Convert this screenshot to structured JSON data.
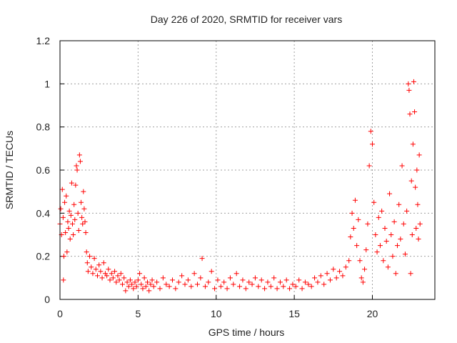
{
  "chart_data": {
    "type": "scatter",
    "title": "Day 226 of 2020, SRMTID for receiver vars",
    "xlabel": "GPS time / hours",
    "ylabel": "SRMTID / TECUs",
    "xlim": [
      0,
      24
    ],
    "ylim": [
      0,
      1.2
    ],
    "xticks": [
      0,
      5,
      10,
      15,
      20
    ],
    "yticks": [
      0,
      0.2,
      0.4,
      0.6,
      0.8,
      1.0,
      1.2
    ],
    "xtick_labels": [
      "0",
      "5",
      "10",
      "15",
      "20"
    ],
    "ytick_labels": [
      "0",
      "0.2",
      "0.4",
      "0.6",
      "0.8",
      "1",
      "1.2"
    ],
    "grid": true,
    "marker": "+",
    "series": [
      {
        "name": "SRMTID",
        "color": "#ff0000",
        "points": [
          [
            0.0,
            0.35
          ],
          [
            0.05,
            0.42
          ],
          [
            0.1,
            0.3
          ],
          [
            0.15,
            0.51
          ],
          [
            0.2,
            0.38
          ],
          [
            0.22,
            0.09
          ],
          [
            0.25,
            0.2
          ],
          [
            0.3,
            0.45
          ],
          [
            0.35,
            0.31
          ],
          [
            0.4,
            0.48
          ],
          [
            0.45,
            0.22
          ],
          [
            0.5,
            0.36
          ],
          [
            0.55,
            0.33
          ],
          [
            0.6,
            0.41
          ],
          [
            0.65,
            0.28
          ],
          [
            0.7,
            0.39
          ],
          [
            0.75,
            0.54
          ],
          [
            0.8,
            0.35
          ],
          [
            0.85,
            0.3
          ],
          [
            0.9,
            0.44
          ],
          [
            0.95,
            0.37
          ],
          [
            1.0,
            0.53
          ],
          [
            1.05,
            0.62
          ],
          [
            1.1,
            0.6
          ],
          [
            1.15,
            0.4
          ],
          [
            1.2,
            0.32
          ],
          [
            1.25,
            0.67
          ],
          [
            1.3,
            0.64
          ],
          [
            1.35,
            0.45
          ],
          [
            1.4,
            0.38
          ],
          [
            1.45,
            0.35
          ],
          [
            1.5,
            0.5
          ],
          [
            1.55,
            0.42
          ],
          [
            1.6,
            0.36
          ],
          [
            1.65,
            0.31
          ],
          [
            1.7,
            0.22
          ],
          [
            1.75,
            0.17
          ],
          [
            1.8,
            0.13
          ],
          [
            1.9,
            0.2
          ],
          [
            2.0,
            0.15
          ],
          [
            2.1,
            0.12
          ],
          [
            2.2,
            0.19
          ],
          [
            2.3,
            0.14
          ],
          [
            2.4,
            0.11
          ],
          [
            2.5,
            0.16
          ],
          [
            2.6,
            0.13
          ],
          [
            2.7,
            0.1
          ],
          [
            2.8,
            0.17
          ],
          [
            2.9,
            0.12
          ],
          [
            3.0,
            0.11
          ],
          [
            3.1,
            0.14
          ],
          [
            3.2,
            0.09
          ],
          [
            3.3,
            0.12
          ],
          [
            3.4,
            0.1
          ],
          [
            3.5,
            0.13
          ],
          [
            3.6,
            0.08
          ],
          [
            3.7,
            0.11
          ],
          [
            3.8,
            0.09
          ],
          [
            3.9,
            0.12
          ],
          [
            4.0,
            0.07
          ],
          [
            4.1,
            0.1
          ],
          [
            4.2,
            0.04
          ],
          [
            4.3,
            0.08
          ],
          [
            4.4,
            0.06
          ],
          [
            4.5,
            0.09
          ],
          [
            4.6,
            0.07
          ],
          [
            4.7,
            0.05
          ],
          [
            4.8,
            0.08
          ],
          [
            4.9,
            0.06
          ],
          [
            5.0,
            0.09
          ],
          [
            5.1,
            0.12
          ],
          [
            5.2,
            0.07
          ],
          [
            5.3,
            0.05
          ],
          [
            5.4,
            0.1
          ],
          [
            5.5,
            0.06
          ],
          [
            5.6,
            0.08
          ],
          [
            5.7,
            0.04
          ],
          [
            5.8,
            0.07
          ],
          [
            5.9,
            0.09
          ],
          [
            6.0,
            0.06
          ],
          [
            6.2,
            0.08
          ],
          [
            6.4,
            0.05
          ],
          [
            6.6,
            0.1
          ],
          [
            6.8,
            0.07
          ],
          [
            7.0,
            0.06
          ],
          [
            7.2,
            0.09
          ],
          [
            7.4,
            0.05
          ],
          [
            7.6,
            0.08
          ],
          [
            7.8,
            0.11
          ],
          [
            8.0,
            0.07
          ],
          [
            8.2,
            0.09
          ],
          [
            8.4,
            0.06
          ],
          [
            8.6,
            0.12
          ],
          [
            8.8,
            0.07
          ],
          [
            9.0,
            0.1
          ],
          [
            9.1,
            0.19
          ],
          [
            9.3,
            0.06
          ],
          [
            9.5,
            0.08
          ],
          [
            9.7,
            0.13
          ],
          [
            9.9,
            0.05
          ],
          [
            10.1,
            0.09
          ],
          [
            10.3,
            0.06
          ],
          [
            10.5,
            0.08
          ],
          [
            10.7,
            0.05
          ],
          [
            10.9,
            0.1
          ],
          [
            11.1,
            0.07
          ],
          [
            11.3,
            0.12
          ],
          [
            11.5,
            0.06
          ],
          [
            11.7,
            0.09
          ],
          [
            11.9,
            0.05
          ],
          [
            12.1,
            0.08
          ],
          [
            12.3,
            0.07
          ],
          [
            12.5,
            0.1
          ],
          [
            12.7,
            0.06
          ],
          [
            12.9,
            0.09
          ],
          [
            13.1,
            0.05
          ],
          [
            13.3,
            0.08
          ],
          [
            13.5,
            0.06
          ],
          [
            13.7,
            0.1
          ],
          [
            13.9,
            0.05
          ],
          [
            14.1,
            0.08
          ],
          [
            14.3,
            0.06
          ],
          [
            14.5,
            0.09
          ],
          [
            14.7,
            0.05
          ],
          [
            14.9,
            0.07
          ],
          [
            15.1,
            0.06
          ],
          [
            15.3,
            0.09
          ],
          [
            15.5,
            0.05
          ],
          [
            15.7,
            0.08
          ],
          [
            15.9,
            0.07
          ],
          [
            16.1,
            0.06
          ],
          [
            16.3,
            0.1
          ],
          [
            16.5,
            0.08
          ],
          [
            16.7,
            0.11
          ],
          [
            16.9,
            0.07
          ],
          [
            17.1,
            0.12
          ],
          [
            17.3,
            0.09
          ],
          [
            17.5,
            0.14
          ],
          [
            17.7,
            0.1
          ],
          [
            17.9,
            0.13
          ],
          [
            18.1,
            0.11
          ],
          [
            18.3,
            0.15
          ],
          [
            18.5,
            0.18
          ],
          [
            18.6,
            0.29
          ],
          [
            18.7,
            0.4
          ],
          [
            18.8,
            0.33
          ],
          [
            18.9,
            0.46
          ],
          [
            19.0,
            0.25
          ],
          [
            19.1,
            0.37
          ],
          [
            19.2,
            0.18
          ],
          [
            19.3,
            0.1
          ],
          [
            19.4,
            0.08
          ],
          [
            19.5,
            0.14
          ],
          [
            19.6,
            0.23
          ],
          [
            19.7,
            0.35
          ],
          [
            19.8,
            0.62
          ],
          [
            19.9,
            0.78
          ],
          [
            20.0,
            0.72
          ],
          [
            20.1,
            0.45
          ],
          [
            20.2,
            0.3
          ],
          [
            20.3,
            0.22
          ],
          [
            20.4,
            0.38
          ],
          [
            20.5,
            0.25
          ],
          [
            20.6,
            0.41
          ],
          [
            20.7,
            0.18
          ],
          [
            20.8,
            0.33
          ],
          [
            20.9,
            0.27
          ],
          [
            21.0,
            0.15
          ],
          [
            21.1,
            0.49
          ],
          [
            21.2,
            0.3
          ],
          [
            21.3,
            0.2
          ],
          [
            21.4,
            0.36
          ],
          [
            21.5,
            0.12
          ],
          [
            21.6,
            0.25
          ],
          [
            21.7,
            0.44
          ],
          [
            21.8,
            0.28
          ],
          [
            21.9,
            0.62
          ],
          [
            22.0,
            0.35
          ],
          [
            22.1,
            0.21
          ],
          [
            22.2,
            0.41
          ],
          [
            22.3,
            1.0
          ],
          [
            22.35,
            0.97
          ],
          [
            22.4,
            0.86
          ],
          [
            22.45,
            0.12
          ],
          [
            22.5,
            0.55
          ],
          [
            22.55,
            0.3
          ],
          [
            22.6,
            0.72
          ],
          [
            22.65,
            1.01
          ],
          [
            22.7,
            0.87
          ],
          [
            22.75,
            0.52
          ],
          [
            22.8,
            0.33
          ],
          [
            22.85,
            0.6
          ],
          [
            22.9,
            0.44
          ],
          [
            22.95,
            0.28
          ],
          [
            23.0,
            0.67
          ],
          [
            23.05,
            0.35
          ]
        ]
      }
    ],
    "dense_band": {
      "note": "dense low band of points",
      "color": "#ff0000"
    }
  }
}
